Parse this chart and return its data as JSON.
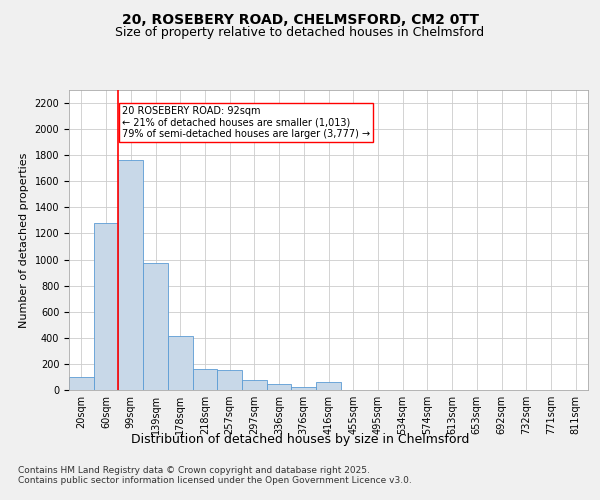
{
  "title_line1": "20, ROSEBERY ROAD, CHELMSFORD, CM2 0TT",
  "title_line2": "Size of property relative to detached houses in Chelmsford",
  "xlabel": "Distribution of detached houses by size in Chelmsford",
  "ylabel": "Number of detached properties",
  "categories": [
    "20sqm",
    "60sqm",
    "99sqm",
    "139sqm",
    "178sqm",
    "218sqm",
    "257sqm",
    "297sqm",
    "336sqm",
    "376sqm",
    "416sqm",
    "455sqm",
    "495sqm",
    "534sqm",
    "574sqm",
    "613sqm",
    "653sqm",
    "692sqm",
    "732sqm",
    "771sqm",
    "811sqm"
  ],
  "values": [
    100,
    1280,
    1760,
    975,
    415,
    160,
    155,
    80,
    45,
    25,
    60,
    0,
    0,
    0,
    0,
    0,
    0,
    0,
    0,
    0,
    0
  ],
  "bar_color": "#c8d8e8",
  "bar_edge_color": "#5b9bd5",
  "vline_color": "red",
  "vline_index": 1.5,
  "annotation_text": "20 ROSEBERY ROAD: 92sqm\n← 21% of detached houses are smaller (1,013)\n79% of semi-detached houses are larger (3,777) →",
  "annotation_box_color": "white",
  "annotation_box_edge": "red",
  "ylim": [
    0,
    2300
  ],
  "yticks": [
    0,
    200,
    400,
    600,
    800,
    1000,
    1200,
    1400,
    1600,
    1800,
    2000,
    2200
  ],
  "footer_line1": "Contains HM Land Registry data © Crown copyright and database right 2025.",
  "footer_line2": "Contains public sector information licensed under the Open Government Licence v3.0.",
  "bg_color": "#f0f0f0",
  "plot_bg_color": "#ffffff",
  "grid_color": "#cccccc",
  "title1_fontsize": 10,
  "title2_fontsize": 9,
  "xlabel_fontsize": 9,
  "ylabel_fontsize": 8,
  "tick_fontsize": 7,
  "annotation_fontsize": 7,
  "footer_fontsize": 6.5
}
